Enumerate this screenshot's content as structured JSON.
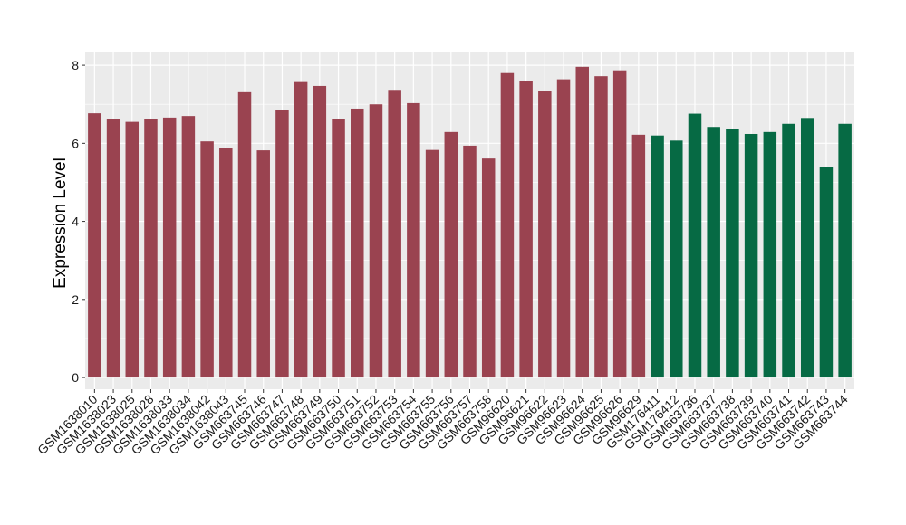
{
  "chart_data": {
    "type": "bar",
    "title": "",
    "xlabel": "",
    "ylabel": "Expression Level",
    "ylim": [
      -0.3,
      8.35
    ],
    "yticks": [
      0,
      2,
      4,
      6,
      8
    ],
    "grid": true,
    "legend": "none",
    "categories": [
      "GSM1638010",
      "GSM1638023",
      "GSM1638025",
      "GSM1638028",
      "GSM1638033",
      "GSM1638034",
      "GSM1638042",
      "GSM1638043",
      "GSM663745",
      "GSM663746",
      "GSM663747",
      "GSM663748",
      "GSM663749",
      "GSM663750",
      "GSM663751",
      "GSM663752",
      "GSM663753",
      "GSM663754",
      "GSM663755",
      "GSM663756",
      "GSM663757",
      "GSM663758",
      "GSM96620",
      "GSM96621",
      "GSM96622",
      "GSM96623",
      "GSM96624",
      "GSM96625",
      "GSM96626",
      "GSM96629",
      "GSM176411",
      "GSM176412",
      "GSM663736",
      "GSM663737",
      "GSM663738",
      "GSM663739",
      "GSM663740",
      "GSM663741",
      "GSM663742",
      "GSM663743",
      "GSM663744"
    ],
    "values": [
      6.77,
      6.62,
      6.55,
      6.62,
      6.66,
      6.7,
      6.05,
      5.87,
      7.31,
      5.82,
      6.85,
      7.57,
      7.47,
      6.62,
      6.89,
      7.0,
      7.37,
      7.03,
      5.83,
      6.29,
      5.94,
      5.61,
      7.8,
      7.59,
      7.33,
      7.64,
      7.96,
      7.72,
      7.87,
      6.22,
      6.2,
      6.07,
      6.76,
      6.42,
      6.36,
      6.24,
      6.29,
      6.5,
      6.65,
      5.39,
      6.5
    ],
    "group_colors": {
      "group1": "#9a4350",
      "group2": "#066a44"
    },
    "group1_count": 30
  },
  "colors": {
    "panel_bg": "#ebebeb",
    "grid": "#ffffff"
  }
}
